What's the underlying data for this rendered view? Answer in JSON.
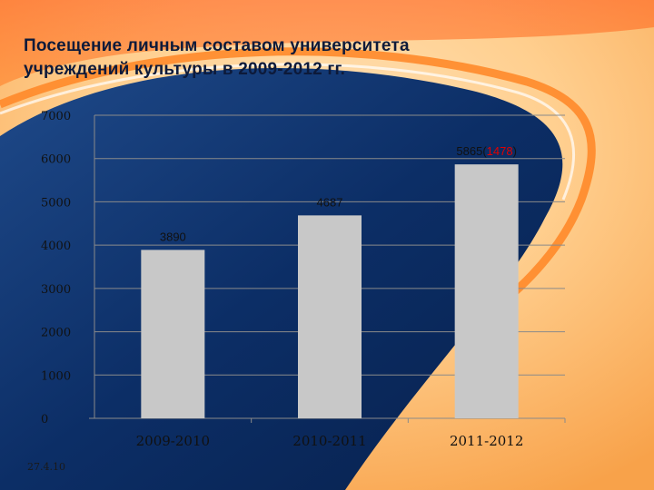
{
  "slide": {
    "title_line1": "Посещение личным составом университета",
    "title_line2": "учреждений культуры в   2009-2012 гг.",
    "date": "27.4.10"
  },
  "colors": {
    "bar": "#c8c8c8",
    "highlight": "#e00000",
    "grid": "#8a8a8a",
    "axis_text": "#111111"
  },
  "chart_data": {
    "type": "bar",
    "categories": [
      "2009-2010",
      "2010-2011",
      "2011-2012"
    ],
    "values": [
      3890,
      4687,
      5865
    ],
    "data_labels": [
      {
        "text": "3890"
      },
      {
        "text": "4687"
      },
      {
        "prefix": "5865(",
        "highlight": "1478",
        "suffix": ")"
      }
    ],
    "yticks": [
      0,
      1000,
      2000,
      3000,
      4000,
      5000,
      6000,
      7000
    ],
    "ylim": [
      0,
      7000
    ],
    "grid": true,
    "legend": "none"
  }
}
